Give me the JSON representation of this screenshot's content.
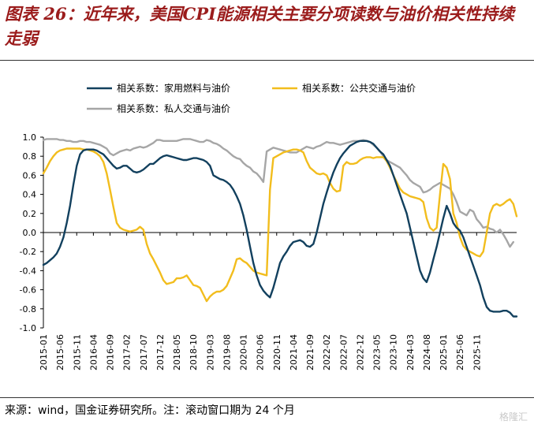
{
  "title": "图表 26：近年来，美国CPI能源相关主要分项读数与油价相关性持续走弱",
  "source": "来源：wind，国金证券研究所。注：滚动窗口期为 24 个月",
  "watermark": "格隆汇",
  "chart_data": {
    "type": "line",
    "ylim": [
      -1.0,
      1.0
    ],
    "yticks": [
      1.0,
      0.8,
      0.6,
      0.4,
      0.2,
      0.0,
      -0.2,
      -0.4,
      -0.6,
      -0.8,
      -1.0
    ],
    "xticks": [
      "2015-01",
      "2015-06",
      "2015-11",
      "2016-04",
      "2016-09",
      "2017-02",
      "2017-07",
      "2017-12",
      "2018-05",
      "2018-10",
      "2019-03",
      "2019-08",
      "2020-01",
      "2020-06",
      "2020-11",
      "2021-04",
      "2021-09",
      "2022-02",
      "2022-07",
      "2022-12",
      "2023-05",
      "2023-10",
      "2024-03",
      "2024-08",
      "2025-01",
      "2025-06",
      "2025-11"
    ],
    "x_start": "2015-01",
    "grid": false,
    "legend": "top",
    "series": [
      {
        "name": "相关系数：家用燃料与油价",
        "color": "#12405e",
        "values": [
          -0.34,
          -0.32,
          -0.29,
          -0.26,
          -0.22,
          -0.15,
          -0.05,
          0.1,
          0.28,
          0.5,
          0.7,
          0.82,
          0.86,
          0.87,
          0.87,
          0.87,
          0.86,
          0.84,
          0.82,
          0.78,
          0.74,
          0.7,
          0.67,
          0.68,
          0.7,
          0.7,
          0.67,
          0.64,
          0.63,
          0.64,
          0.66,
          0.69,
          0.72,
          0.72,
          0.75,
          0.78,
          0.8,
          0.81,
          0.8,
          0.79,
          0.78,
          0.77,
          0.76,
          0.76,
          0.77,
          0.78,
          0.78,
          0.77,
          0.76,
          0.74,
          0.7,
          0.6,
          0.58,
          0.56,
          0.55,
          0.53,
          0.5,
          0.45,
          0.38,
          0.3,
          0.18,
          0.03,
          -0.15,
          -0.32,
          -0.45,
          -0.55,
          -0.61,
          -0.65,
          -0.68,
          -0.58,
          -0.45,
          -0.32,
          -0.25,
          -0.2,
          -0.14,
          -0.1,
          -0.09,
          -0.08,
          -0.1,
          -0.14,
          -0.15,
          -0.12,
          0.0,
          0.15,
          0.3,
          0.42,
          0.53,
          0.63,
          0.71,
          0.78,
          0.83,
          0.87,
          0.91,
          0.93,
          0.95,
          0.96,
          0.96,
          0.96,
          0.95,
          0.93,
          0.89,
          0.85,
          0.82,
          0.76,
          0.7,
          0.6,
          0.5,
          0.4,
          0.3,
          0.2,
          0.05,
          -0.1,
          -0.25,
          -0.4,
          -0.48,
          -0.52,
          -0.42,
          -0.28,
          -0.15,
          0.0,
          0.15,
          0.28,
          0.2,
          0.1,
          0.05,
          0.02,
          -0.05,
          -0.15,
          -0.25,
          -0.35,
          -0.45,
          -0.55,
          -0.68,
          -0.78,
          -0.82,
          -0.83,
          -0.83,
          -0.83,
          -0.82,
          -0.82,
          -0.84,
          -0.88,
          -0.88
        ]
      },
      {
        "name": "相关系数：公共交通与油价",
        "color": "#f2bd1d",
        "values": [
          0.62,
          0.68,
          0.75,
          0.8,
          0.84,
          0.86,
          0.87,
          0.88,
          0.88,
          0.88,
          0.88,
          0.88,
          0.87,
          0.87,
          0.86,
          0.85,
          0.83,
          0.8,
          0.74,
          0.62,
          0.45,
          0.27,
          0.1,
          0.05,
          0.03,
          0.02,
          0.01,
          0.02,
          0.03,
          0.06,
          0.03,
          -0.12,
          -0.22,
          -0.28,
          -0.35,
          -0.42,
          -0.5,
          -0.54,
          -0.53,
          -0.52,
          -0.48,
          -0.48,
          -0.47,
          -0.45,
          -0.5,
          -0.55,
          -0.56,
          -0.58,
          -0.65,
          -0.72,
          -0.67,
          -0.64,
          -0.62,
          -0.62,
          -0.6,
          -0.56,
          -0.48,
          -0.4,
          -0.28,
          -0.27,
          -0.3,
          -0.32,
          -0.36,
          -0.4,
          -0.42,
          -0.43,
          -0.44,
          -0.45,
          0.45,
          0.78,
          0.8,
          0.82,
          0.84,
          0.85,
          0.86,
          0.87,
          0.87,
          0.86,
          0.84,
          0.75,
          0.68,
          0.65,
          0.62,
          0.61,
          0.62,
          0.6,
          0.52,
          0.46,
          0.43,
          0.44,
          0.7,
          0.74,
          0.72,
          0.72,
          0.73,
          0.76,
          0.78,
          0.79,
          0.79,
          0.78,
          0.79,
          0.79,
          0.79,
          0.75,
          0.68,
          0.6,
          0.53,
          0.46,
          0.42,
          0.4,
          0.38,
          0.37,
          0.36,
          0.35,
          0.32,
          0.15,
          0.05,
          0.02,
          0.05,
          0.4,
          0.72,
          0.68,
          0.56,
          0.2,
          0.1,
          -0.05,
          -0.14,
          -0.18,
          -0.2,
          -0.22,
          -0.24,
          -0.25,
          -0.2,
          0.0,
          0.2,
          0.28,
          0.3,
          0.28,
          0.3,
          0.33,
          0.35,
          0.3,
          0.17
        ]
      },
      {
        "name": "相关系数：私人交通与油价",
        "color": "#a6a6a6",
        "values": [
          0.97,
          0.98,
          0.98,
          0.98,
          0.98,
          0.97,
          0.97,
          0.96,
          0.96,
          0.95,
          0.95,
          0.96,
          0.96,
          0.95,
          0.95,
          0.94,
          0.93,
          0.92,
          0.9,
          0.88,
          0.83,
          0.81,
          0.83,
          0.85,
          0.86,
          0.87,
          0.86,
          0.88,
          0.89,
          0.9,
          0.89,
          0.9,
          0.92,
          0.94,
          0.97,
          0.97,
          0.96,
          0.96,
          0.96,
          0.96,
          0.96,
          0.97,
          0.98,
          0.98,
          0.98,
          0.97,
          0.96,
          0.95,
          0.95,
          0.97,
          0.96,
          0.94,
          0.93,
          0.91,
          0.88,
          0.86,
          0.83,
          0.8,
          0.78,
          0.77,
          0.73,
          0.7,
          0.68,
          0.64,
          0.62,
          0.58,
          0.53,
          0.85,
          0.87,
          0.89,
          0.88,
          0.87,
          0.86,
          0.85,
          0.84,
          0.84,
          0.84,
          0.86,
          0.88,
          0.9,
          0.89,
          0.88,
          0.9,
          0.91,
          0.93,
          0.95,
          0.94,
          0.94,
          0.93,
          0.92,
          0.93,
          0.94,
          0.95,
          0.96,
          0.96,
          0.96,
          0.97,
          0.96,
          0.95,
          0.92,
          0.89,
          0.85,
          0.8,
          0.76,
          0.74,
          0.72,
          0.7,
          0.68,
          0.64,
          0.6,
          0.55,
          0.52,
          0.5,
          0.48,
          0.42,
          0.43,
          0.45,
          0.48,
          0.5,
          0.52,
          0.5,
          0.48,
          0.46,
          0.4,
          0.32,
          0.22,
          0.2,
          0.18,
          0.24,
          0.22,
          0.14,
          0.1,
          0.05,
          0.06,
          0.04,
          0.03,
          0.0,
          0.03,
          -0.02,
          -0.08,
          -0.15,
          -0.1
        ]
      }
    ]
  }
}
